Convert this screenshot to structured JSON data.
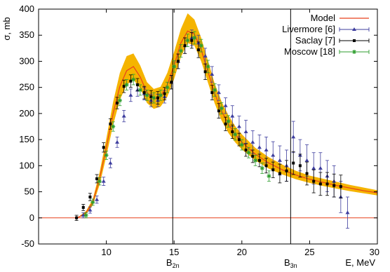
{
  "chart_data": {
    "type": "scatter",
    "title": "",
    "xlabel": "E, MeV",
    "ylabel": "σ, mb",
    "xlim": [
      5,
      30
    ],
    "ylim": [
      -50,
      400
    ],
    "x_ticks": [
      "10",
      "15",
      "20",
      "25",
      "30"
    ],
    "y_ticks": [
      "-50",
      "0",
      "50",
      "100",
      "150",
      "200",
      "250",
      "300",
      "350",
      "400"
    ],
    "legend_position": "top-right",
    "grid": false,
    "zero_line": true,
    "thresholds": [
      {
        "label": "B",
        "sub": "2n",
        "x": 14.9
      },
      {
        "label": "B",
        "sub": "3n",
        "x": 23.6
      }
    ],
    "band_color": "#f5b400",
    "series": [
      {
        "name": "Model",
        "kind": "line",
        "color": "#e8411c",
        "x": [
          7.7,
          8.0,
          8.5,
          9.0,
          9.5,
          10.0,
          10.5,
          11.0,
          11.5,
          12.0,
          12.5,
          13.0,
          13.5,
          14.0,
          14.5,
          15.0,
          15.5,
          16.0,
          16.5,
          17.0,
          17.5,
          18.0,
          18.5,
          19.0,
          19.5,
          20.0,
          21.0,
          22.0,
          23.0,
          24.0,
          25.0,
          26.0,
          27.0,
          28.0,
          29.0,
          30.0
        ],
        "y": [
          0,
          2,
          10,
          30,
          75,
          135,
          200,
          252,
          282,
          290,
          270,
          240,
          228,
          232,
          255,
          292,
          335,
          358,
          352,
          322,
          280,
          238,
          205,
          180,
          160,
          145,
          122,
          105,
          92,
          82,
          74,
          68,
          62,
          57,
          52,
          48
        ],
        "band_lo": [
          0,
          1,
          7,
          24,
          63,
          118,
          178,
          226,
          255,
          265,
          248,
          220,
          209,
          213,
          232,
          266,
          308,
          335,
          330,
          300,
          259,
          219,
          187,
          163,
          145,
          131,
          110,
          94,
          83,
          74,
          67,
          61,
          56,
          51,
          47,
          43
        ],
        "band_hi": [
          0,
          3,
          13,
          36,
          87,
          152,
          222,
          278,
          310,
          315,
          292,
          260,
          247,
          251,
          278,
          318,
          362,
          392,
          380,
          345,
          301,
          257,
          223,
          197,
          176,
          160,
          134,
          116,
          102,
          90,
          81,
          75,
          69,
          63,
          58,
          53
        ]
      },
      {
        "name": "Livermore [6]",
        "kind": "points",
        "marker": "triangle",
        "color": "#3d3d9e",
        "x": [
          8.3,
          8.8,
          9.3,
          9.8,
          10.3,
          10.8,
          11.3,
          11.8,
          12.3,
          12.8,
          13.3,
          13.8,
          14.3,
          14.8,
          15.3,
          15.8,
          16.3,
          16.8,
          17.3,
          17.8,
          18.3,
          18.8,
          19.3,
          19.8,
          20.3,
          20.8,
          21.3,
          21.8,
          22.3,
          22.8,
          23.3,
          23.8,
          24.3,
          24.8,
          25.3,
          25.8,
          26.3,
          26.8,
          27.3,
          27.8
        ],
        "y": [
          5,
          15,
          35,
          70,
          105,
          145,
          195,
          235,
          245,
          238,
          225,
          225,
          232,
          260,
          300,
          330,
          345,
          335,
          310,
          275,
          240,
          215,
          195,
          175,
          165,
          145,
          135,
          130,
          120,
          110,
          100,
          155,
          120,
          110,
          95,
          95,
          80,
          70,
          40,
          10
        ],
        "err": [
          5,
          6,
          7,
          8,
          9,
          10,
          11,
          12,
          12,
          12,
          12,
          12,
          12,
          13,
          14,
          15,
          15,
          15,
          15,
          15,
          15,
          15,
          20,
          20,
          22,
          22,
          24,
          25,
          26,
          28,
          30,
          30,
          30,
          30,
          30,
          30,
          30,
          30,
          30,
          30
        ]
      },
      {
        "name": "Saclay [7]",
        "kind": "points",
        "marker": "square",
        "color": "#000000",
        "x": [
          7.8,
          8.3,
          8.8,
          9.3,
          9.8,
          10.3,
          10.8,
          11.3,
          11.8,
          12.3,
          12.8,
          13.3,
          13.8,
          14.3,
          14.8,
          15.3,
          15.8,
          16.3,
          16.8,
          17.3,
          17.8,
          18.3,
          18.8,
          19.3,
          19.8,
          20.3,
          20.8,
          21.3,
          21.8,
          22.3,
          22.8,
          23.3,
          23.8,
          24.3,
          24.8,
          25.3,
          25.8,
          26.3,
          26.8,
          27.3
        ],
        "y": [
          0,
          20,
          40,
          75,
          135,
          180,
          220,
          252,
          262,
          255,
          240,
          232,
          230,
          238,
          260,
          300,
          330,
          340,
          322,
          280,
          240,
          205,
          180,
          165,
          150,
          130,
          118,
          110,
          100,
          92,
          85,
          90,
          105,
          100,
          85,
          70,
          65,
          65,
          62,
          60
        ],
        "err": [
          5,
          6,
          7,
          8,
          9,
          10,
          11,
          12,
          12,
          12,
          12,
          12,
          12,
          12,
          13,
          14,
          15,
          15,
          15,
          15,
          14,
          14,
          13,
          13,
          12,
          12,
          12,
          12,
          14,
          15,
          18,
          20,
          22,
          22,
          22,
          22,
          22,
          22,
          22,
          22
        ]
      },
      {
        "name": "Moscow [18]",
        "kind": "points",
        "marker": "star",
        "color": "#2e9e2e",
        "x": [
          8.5,
          9.0,
          9.5,
          10.0,
          10.5,
          11.0,
          11.5,
          12.0,
          12.5,
          13.0,
          13.5,
          14.0,
          14.5,
          15.0,
          15.5,
          16.0,
          16.5,
          17.0,
          17.5,
          18.0,
          18.5,
          19.0,
          19.5,
          20.0,
          20.5,
          21.0,
          21.5,
          22.0
        ],
        "y": [
          5,
          30,
          70,
          120,
          175,
          225,
          255,
          265,
          245,
          235,
          230,
          235,
          250,
          290,
          320,
          340,
          345,
          330,
          290,
          245,
          210,
          185,
          160,
          140,
          125,
          110,
          95,
          80
        ],
        "err": [
          5,
          6,
          7,
          8,
          9,
          10,
          10,
          10,
          10,
          10,
          10,
          10,
          10,
          11,
          12,
          12,
          12,
          12,
          12,
          12,
          11,
          11,
          11,
          10,
          10,
          10,
          10,
          10
        ]
      }
    ]
  }
}
